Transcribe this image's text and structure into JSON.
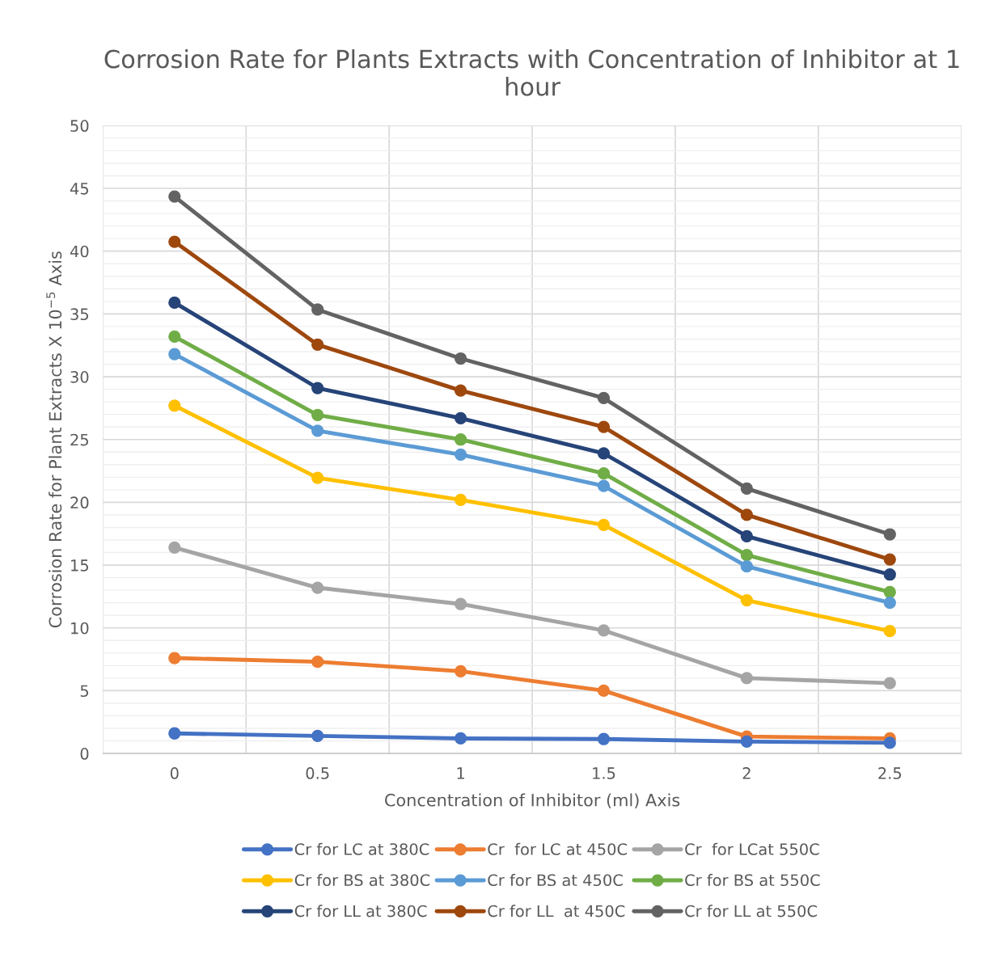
{
  "chart_data": {
    "type": "line",
    "title": "Corrosion Rate for Plants Extracts with Concentration of Inhibitor at 1 hour",
    "xlabel": "Concentration of Inhibitor (ml) Axis",
    "ylabel": "Corrosion Rate for Plant Extracts X 10$^{−5}$ Axis",
    "categories": [
      "0",
      "0.5",
      "1",
      "1.5",
      "2",
      "2.5"
    ],
    "ylim": [
      0,
      50
    ],
    "yticks": [
      0,
      5,
      10,
      15,
      20,
      25,
      30,
      35,
      40,
      45,
      50
    ],
    "grid": true,
    "legend": "bottom",
    "marker": "circle",
    "line_style": "solid",
    "series": [
      {
        "name": "Cr for LC at 380C",
        "color": "#4472c4",
        "values": [
          1.6,
          1.4,
          1.2,
          1.15,
          0.95,
          0.85
        ]
      },
      {
        "name": "Cr  for LC at 450C",
        "color": "#ed7d31",
        "values": [
          7.6,
          7.3,
          6.55,
          5.0,
          1.35,
          1.2
        ]
      },
      {
        "name": "Cr  for LCat 550C",
        "color": "#a5a5a5",
        "values": [
          16.4,
          13.2,
          11.9,
          9.8,
          6.0,
          5.6
        ]
      },
      {
        "name": "Cr for BS at 380C",
        "color": "#ffc000",
        "values": [
          27.7,
          21.95,
          20.2,
          18.2,
          12.2,
          9.75
        ]
      },
      {
        "name": "Cr for BS at 450C",
        "color": "#5b9bd5",
        "values": [
          31.8,
          25.7,
          23.8,
          21.3,
          14.9,
          12.0
        ]
      },
      {
        "name": "Cr for BS at 550C",
        "color": "#70ad47",
        "values": [
          33.2,
          26.95,
          25.0,
          22.3,
          15.8,
          12.85
        ]
      },
      {
        "name": "Cr for LL at 380C",
        "color": "#264478",
        "values": [
          35.9,
          29.1,
          26.7,
          23.9,
          17.3,
          14.25
        ]
      },
      {
        "name": "Cr for LL  at 450C",
        "color": "#9e480e",
        "values": [
          40.75,
          32.55,
          28.9,
          26.0,
          19.0,
          15.45
        ]
      },
      {
        "name": "Cr for LL at 550C",
        "color": "#636363",
        "values": [
          44.35,
          35.35,
          31.45,
          28.3,
          21.1,
          17.45
        ]
      }
    ]
  }
}
